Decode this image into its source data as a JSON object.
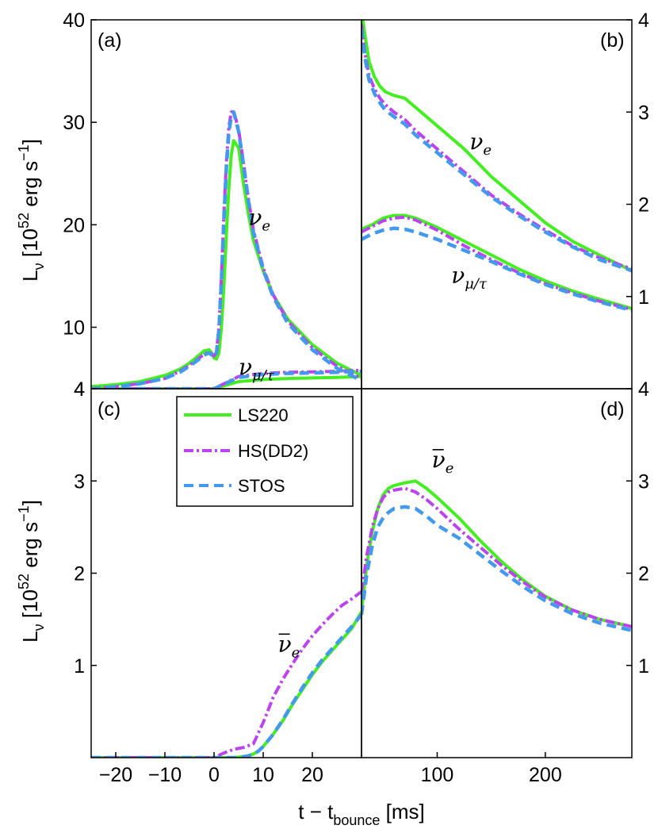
{
  "chart_data": [
    {
      "panel": "a",
      "panel_label": "(a)",
      "type": "line",
      "ylim": [
        4,
        40
      ],
      "xlim": [
        -25,
        30
      ],
      "yticks": [
        {
          "v": 4,
          "label": "4"
        },
        {
          "v": 10,
          "label": "10"
        },
        {
          "v": 20,
          "label": "20"
        },
        {
          "v": 30,
          "label": "30"
        },
        {
          "v": 40,
          "label": "40"
        }
      ],
      "annotations": [
        {
          "text": "ν",
          "sub": "e",
          "bar": false,
          "x": 7,
          "y": 20
        },
        {
          "text": "ν",
          "sub": "μ/τ",
          "bar": false,
          "x": 5,
          "y": 5.4
        }
      ],
      "series": [
        {
          "name": "LS220",
          "x": [
            -25,
            -20,
            -15,
            -10,
            -7,
            -5,
            -3,
            -2,
            -1,
            -0.5,
            0,
            0.5,
            1,
            1.5,
            2,
            2.5,
            3,
            3.5,
            4,
            5,
            6,
            7,
            8,
            10,
            12,
            15,
            20,
            25,
            30
          ],
          "y": [
            4.2,
            4.4,
            4.7,
            5.3,
            5.9,
            6.5,
            7.3,
            7.7,
            7.8,
            7.5,
            7.0,
            6.9,
            7.5,
            10,
            14,
            19,
            23.5,
            26.8,
            28.2,
            27.5,
            24,
            21,
            18.5,
            15.5,
            13.2,
            10.8,
            8.3,
            6.5,
            5.3
          ]
        },
        {
          "name": "LS220",
          "x": [
            -25,
            -5,
            0,
            5,
            10,
            15,
            20,
            25,
            30
          ],
          "y": [
            4.0,
            4.0,
            4.0,
            4.7,
            4.9,
            5.0,
            5.05,
            5.1,
            5.2
          ]
        },
        {
          "name": "HS(DD2)",
          "x": [
            -25,
            -20,
            -15,
            -10,
            -7,
            -5,
            -3,
            -2,
            -1,
            -0.5,
            0,
            0.5,
            1,
            1.5,
            2,
            2.5,
            3,
            3.5,
            4,
            5,
            6,
            7,
            8,
            10,
            12,
            15,
            20,
            25,
            30
          ],
          "y": [
            4.0,
            4.2,
            4.5,
            5.0,
            5.7,
            6.3,
            7.0,
            7.4,
            7.6,
            7.4,
            7.2,
            7.6,
            10,
            15,
            21,
            26,
            29.5,
            31,
            31.1,
            29.3,
            26,
            22.5,
            19.5,
            15.8,
            13.2,
            10.6,
            8.0,
            6.2,
            5.0
          ]
        },
        {
          "name": "HS(DD2)",
          "x": [
            -25,
            -5,
            0,
            5,
            10,
            15,
            20,
            25,
            30
          ],
          "y": [
            4.0,
            4.0,
            4.0,
            5.2,
            5.5,
            5.6,
            5.65,
            5.7,
            5.8
          ]
        },
        {
          "name": "STOS",
          "x": [
            -25,
            -20,
            -15,
            -10,
            -7,
            -5,
            -3,
            -2,
            -1,
            -0.5,
            0,
            0.5,
            1,
            1.5,
            2,
            2.5,
            3,
            3.5,
            4,
            5,
            6,
            7,
            8,
            10,
            12,
            15,
            20,
            25,
            30
          ],
          "y": [
            4.0,
            4.2,
            4.5,
            5.0,
            5.6,
            6.2,
            6.9,
            7.3,
            7.5,
            7.3,
            7.1,
            7.5,
            9.8,
            14.5,
            20.5,
            25.5,
            29,
            30.5,
            31,
            29.1,
            25.8,
            22.3,
            19.3,
            15.6,
            13.0,
            10.4,
            7.8,
            6.0,
            4.8
          ]
        },
        {
          "name": "STOS",
          "x": [
            -25,
            -5,
            0,
            5,
            10,
            15,
            20,
            25,
            30
          ],
          "y": [
            4.0,
            4.0,
            4.0,
            5.1,
            5.4,
            5.5,
            5.55,
            5.6,
            5.7
          ]
        }
      ]
    },
    {
      "panel": "b",
      "panel_label": "(b)",
      "type": "line",
      "ylim": [
        0,
        4
      ],
      "xlim": [
        30,
        280
      ],
      "yticks": [
        {
          "v": 1,
          "label": "1"
        },
        {
          "v": 2,
          "label": "2"
        },
        {
          "v": 3,
          "label": "3"
        },
        {
          "v": 4,
          "label": "4"
        }
      ],
      "annotations": [
        {
          "text": "ν",
          "sub": "e",
          "bar": false,
          "x": 130,
          "y": 2.6
        },
        {
          "text": "ν",
          "sub": "μ/τ",
          "bar": false,
          "x": 113,
          "y": 1.15
        }
      ],
      "series": [
        {
          "name": "LS220",
          "x": [
            30,
            33,
            37,
            42,
            47,
            52,
            60,
            70,
            80,
            100,
            125,
            150,
            175,
            200,
            225,
            250,
            280
          ],
          "y": [
            4.1,
            3.85,
            3.55,
            3.38,
            3.28,
            3.22,
            3.18,
            3.15,
            3.05,
            2.85,
            2.6,
            2.3,
            2.05,
            1.8,
            1.6,
            1.45,
            1.28
          ]
        },
        {
          "name": "LS220",
          "x": [
            30,
            40,
            50,
            60,
            70,
            80,
            100,
            125,
            150,
            175,
            200,
            225,
            250,
            280
          ],
          "y": [
            1.73,
            1.78,
            1.85,
            1.88,
            1.88,
            1.85,
            1.75,
            1.6,
            1.45,
            1.3,
            1.17,
            1.06,
            0.97,
            0.87
          ]
        },
        {
          "name": "HS(DD2)",
          "x": [
            30,
            33,
            37,
            42,
            47,
            52,
            60,
            70,
            80,
            100,
            125,
            150,
            175,
            200,
            225,
            250,
            280
          ],
          "y": [
            3.95,
            3.65,
            3.4,
            3.25,
            3.15,
            3.08,
            3.0,
            2.92,
            2.8,
            2.6,
            2.35,
            2.1,
            1.9,
            1.72,
            1.55,
            1.42,
            1.3
          ]
        },
        {
          "name": "HS(DD2)",
          "x": [
            30,
            40,
            50,
            60,
            70,
            80,
            100,
            125,
            150,
            175,
            200,
            225,
            250,
            280
          ],
          "y": [
            1.7,
            1.76,
            1.82,
            1.85,
            1.86,
            1.83,
            1.72,
            1.55,
            1.4,
            1.26,
            1.14,
            1.04,
            0.95,
            0.86
          ]
        },
        {
          "name": "STOS",
          "x": [
            30,
            33,
            37,
            42,
            47,
            52,
            60,
            70,
            80,
            100,
            125,
            150,
            175,
            200,
            225,
            250,
            280
          ],
          "y": [
            3.9,
            3.6,
            3.35,
            3.2,
            3.1,
            3.02,
            2.95,
            2.87,
            2.75,
            2.56,
            2.32,
            2.08,
            1.88,
            1.7,
            1.54,
            1.4,
            1.28
          ]
        },
        {
          "name": "STOS",
          "x": [
            30,
            40,
            50,
            60,
            70,
            80,
            100,
            125,
            150,
            175,
            200,
            225,
            250,
            280
          ],
          "y": [
            1.62,
            1.68,
            1.72,
            1.74,
            1.73,
            1.7,
            1.62,
            1.5,
            1.38,
            1.25,
            1.13,
            1.03,
            0.94,
            0.85
          ]
        }
      ]
    },
    {
      "panel": "c",
      "panel_label": "(c)",
      "type": "line",
      "ylim": [
        0,
        4
      ],
      "xlim": [
        -25,
        30
      ],
      "xticks": [
        {
          "v": -20,
          "label": "−20"
        },
        {
          "v": -10,
          "label": "−10"
        },
        {
          "v": 0,
          "label": "0"
        },
        {
          "v": 10,
          "label": "10"
        },
        {
          "v": 20,
          "label": "20"
        }
      ],
      "yticks": [
        {
          "v": 1,
          "label": "1"
        },
        {
          "v": 2,
          "label": "2"
        },
        {
          "v": 3,
          "label": "3"
        },
        {
          "v": 4,
          "label": "4"
        }
      ],
      "annotations": [
        {
          "text": "ν",
          "sub": "e",
          "bar": true,
          "x": 13,
          "y": 1.15
        }
      ],
      "series": [
        {
          "name": "LS220",
          "x": [
            -25,
            0,
            2,
            4,
            6,
            7,
            8,
            9,
            10,
            12,
            14,
            16,
            18,
            20,
            22,
            24,
            26,
            28,
            30
          ],
          "y": [
            0,
            0,
            0,
            0,
            0.01,
            0.02,
            0.04,
            0.07,
            0.12,
            0.25,
            0.4,
            0.58,
            0.74,
            0.9,
            1.04,
            1.16,
            1.28,
            1.4,
            1.58
          ]
        },
        {
          "name": "HS(DD2)",
          "x": [
            -25,
            0,
            2,
            4,
            6,
            8,
            10,
            12,
            14,
            16,
            18,
            20,
            22,
            24,
            26,
            28,
            30
          ],
          "y": [
            0,
            0,
            0.05,
            0.09,
            0.11,
            0.15,
            0.38,
            0.65,
            0.85,
            1.02,
            1.18,
            1.32,
            1.44,
            1.55,
            1.65,
            1.72,
            1.8
          ]
        },
        {
          "name": "STOS",
          "x": [
            -25,
            0,
            2,
            4,
            6,
            7,
            8,
            9,
            10,
            12,
            14,
            16,
            18,
            20,
            22,
            24,
            26,
            28,
            30
          ],
          "y": [
            0,
            0,
            0,
            0,
            0.01,
            0.02,
            0.04,
            0.07,
            0.12,
            0.25,
            0.41,
            0.59,
            0.76,
            0.92,
            1.06,
            1.18,
            1.3,
            1.42,
            1.55
          ]
        }
      ]
    },
    {
      "panel": "d",
      "panel_label": "(d)",
      "type": "line",
      "ylim": [
        0,
        4
      ],
      "xlim": [
        30,
        280
      ],
      "xticks": [
        {
          "v": 100,
          "label": "100"
        },
        {
          "v": 200,
          "label": "200"
        }
      ],
      "yticks": [
        {
          "v": 1,
          "label": "1"
        },
        {
          "v": 2,
          "label": "2"
        },
        {
          "v": 3,
          "label": "3"
        },
        {
          "v": 4,
          "label": "4"
        }
      ],
      "annotations": [
        {
          "text": "ν",
          "sub": "e",
          "bar": true,
          "x": 95,
          "y": 3.15
        }
      ],
      "series": [
        {
          "name": "LS220",
          "x": [
            30,
            35,
            40,
            45,
            50,
            55,
            60,
            70,
            80,
            90,
            100,
            120,
            140,
            160,
            180,
            200,
            225,
            250,
            280
          ],
          "y": [
            1.6,
            2.1,
            2.45,
            2.7,
            2.85,
            2.92,
            2.95,
            2.98,
            3.0,
            2.92,
            2.82,
            2.6,
            2.35,
            2.12,
            1.92,
            1.75,
            1.6,
            1.5,
            1.42
          ]
        },
        {
          "name": "HS(DD2)",
          "x": [
            30,
            35,
            40,
            45,
            50,
            55,
            60,
            70,
            80,
            90,
            100,
            120,
            140,
            160,
            180,
            200,
            225,
            250,
            280
          ],
          "y": [
            1.8,
            2.2,
            2.5,
            2.7,
            2.82,
            2.88,
            2.9,
            2.92,
            2.88,
            2.8,
            2.7,
            2.48,
            2.28,
            2.08,
            1.9,
            1.74,
            1.6,
            1.5,
            1.42
          ]
        },
        {
          "name": "STOS",
          "x": [
            30,
            35,
            40,
            45,
            50,
            55,
            60,
            70,
            80,
            90,
            100,
            120,
            140,
            160,
            180,
            200,
            225,
            250,
            280
          ],
          "y": [
            1.55,
            2.0,
            2.3,
            2.5,
            2.6,
            2.66,
            2.7,
            2.72,
            2.7,
            2.62,
            2.52,
            2.38,
            2.2,
            2.02,
            1.85,
            1.7,
            1.56,
            1.46,
            1.38
          ]
        }
      ]
    }
  ],
  "axes": {
    "ylabel_main": "L",
    "ylabel_nu": "ν",
    "ylabel_units": "[10",
    "ylabel_exp": "52",
    "ylabel_units2": " erg s",
    "ylabel_exp2": "−1",
    "ylabel_close": "]",
    "xlabel_main": "t − t",
    "xlabel_sub": "bounce",
    "xlabel_units": " [ms]"
  },
  "legend": [
    {
      "label": "LS220",
      "color": "#44ee22",
      "dash": "solid"
    },
    {
      "label": "HS(DD2)",
      "color": "#bb44ee",
      "dash": "dashdot"
    },
    {
      "label": "STOS",
      "color": "#4499ee",
      "dash": "dashed"
    }
  ],
  "colors": {
    "LS220": "#44ee22",
    "HS(DD2)": "#bb44ee",
    "STOS": "#4499ee"
  }
}
